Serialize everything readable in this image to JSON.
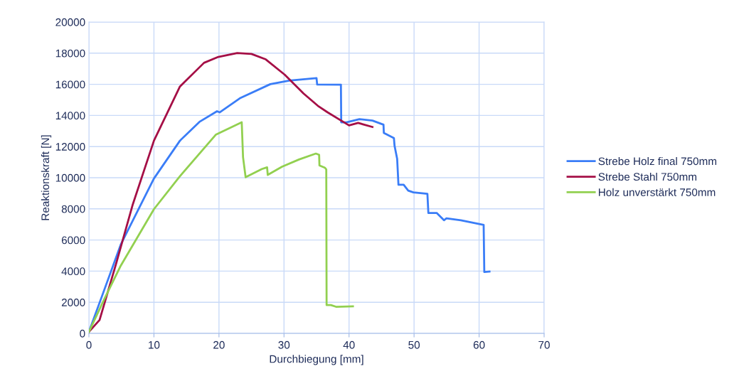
{
  "chart_data": {
    "type": "line",
    "xlabel": "Durchbiegung [mm]",
    "ylabel": "Reaktionskraft [N]",
    "xlim": [
      0,
      70
    ],
    "xticks": [
      0,
      10,
      20,
      30,
      40,
      50,
      60,
      70
    ],
    "ylim": [
      0,
      20000
    ],
    "yticks": [
      0,
      2000,
      4000,
      6000,
      8000,
      10000,
      12000,
      14000,
      16000,
      18000,
      20000
    ],
    "grid": true,
    "legend": "right",
    "marker": "none",
    "line_style": "solid",
    "series": [
      {
        "name": "Strebe Holz final 750mm",
        "color": "#3a7df7",
        "x": [
          0,
          2,
          4.9,
          10,
          14,
          17,
          19.7,
          20.1,
          23.2,
          27.9,
          30.8,
          35,
          35.1,
          38.75,
          38.8,
          39.6,
          41.6,
          43.6,
          45.3,
          45.35,
          46.9,
          47.0,
          47.4,
          47.6,
          48.4,
          49.1,
          49.9,
          52.05,
          52.2,
          53.5,
          54.6,
          54.98,
          57.2,
          60.7,
          60.8,
          61.6
        ],
        "values": [
          100,
          2380,
          5710,
          9950,
          12380,
          13590,
          14270,
          14200,
          15100,
          16010,
          16240,
          16400,
          15990,
          15980,
          13560,
          13560,
          13760,
          13670,
          13410,
          12880,
          12550,
          12050,
          11210,
          9550,
          9550,
          9170,
          9060,
          8970,
          7730,
          7730,
          7270,
          7390,
          7270,
          6970,
          3940,
          3970
        ]
      },
      {
        "name": "Strebe Stahl 750mm",
        "color": "#a50f46",
        "x": [
          0,
          1.64,
          4.2,
          6.75,
          10,
          14,
          17.7,
          19.9,
          22.8,
          25,
          27.2,
          30.1,
          33,
          35.2,
          36.7,
          40,
          41.4,
          43.6
        ],
        "values": [
          100,
          860,
          4500,
          8290,
          12380,
          15860,
          17380,
          17760,
          18010,
          17950,
          17600,
          16620,
          15410,
          14620,
          14200,
          13360,
          13520,
          13260
        ]
      },
      {
        "name": "Holz unverstärkt 750mm",
        "color": "#92d050",
        "x": [
          0,
          2.4,
          4.9,
          10,
          14,
          19.5,
          23.5,
          23.7,
          24.1,
          26.6,
          27.4,
          27.5,
          29.7,
          32.3,
          34.9,
          35.4,
          35.45,
          36.3,
          36.5,
          36.55,
          37.2,
          38,
          40.6
        ],
        "values": [
          100,
          2230,
          4350,
          7980,
          10100,
          12760,
          13560,
          11320,
          10030,
          10560,
          10670,
          10180,
          10710,
          11170,
          11550,
          11470,
          10790,
          10640,
          10530,
          1820,
          1820,
          1710,
          1740
        ]
      }
    ]
  }
}
